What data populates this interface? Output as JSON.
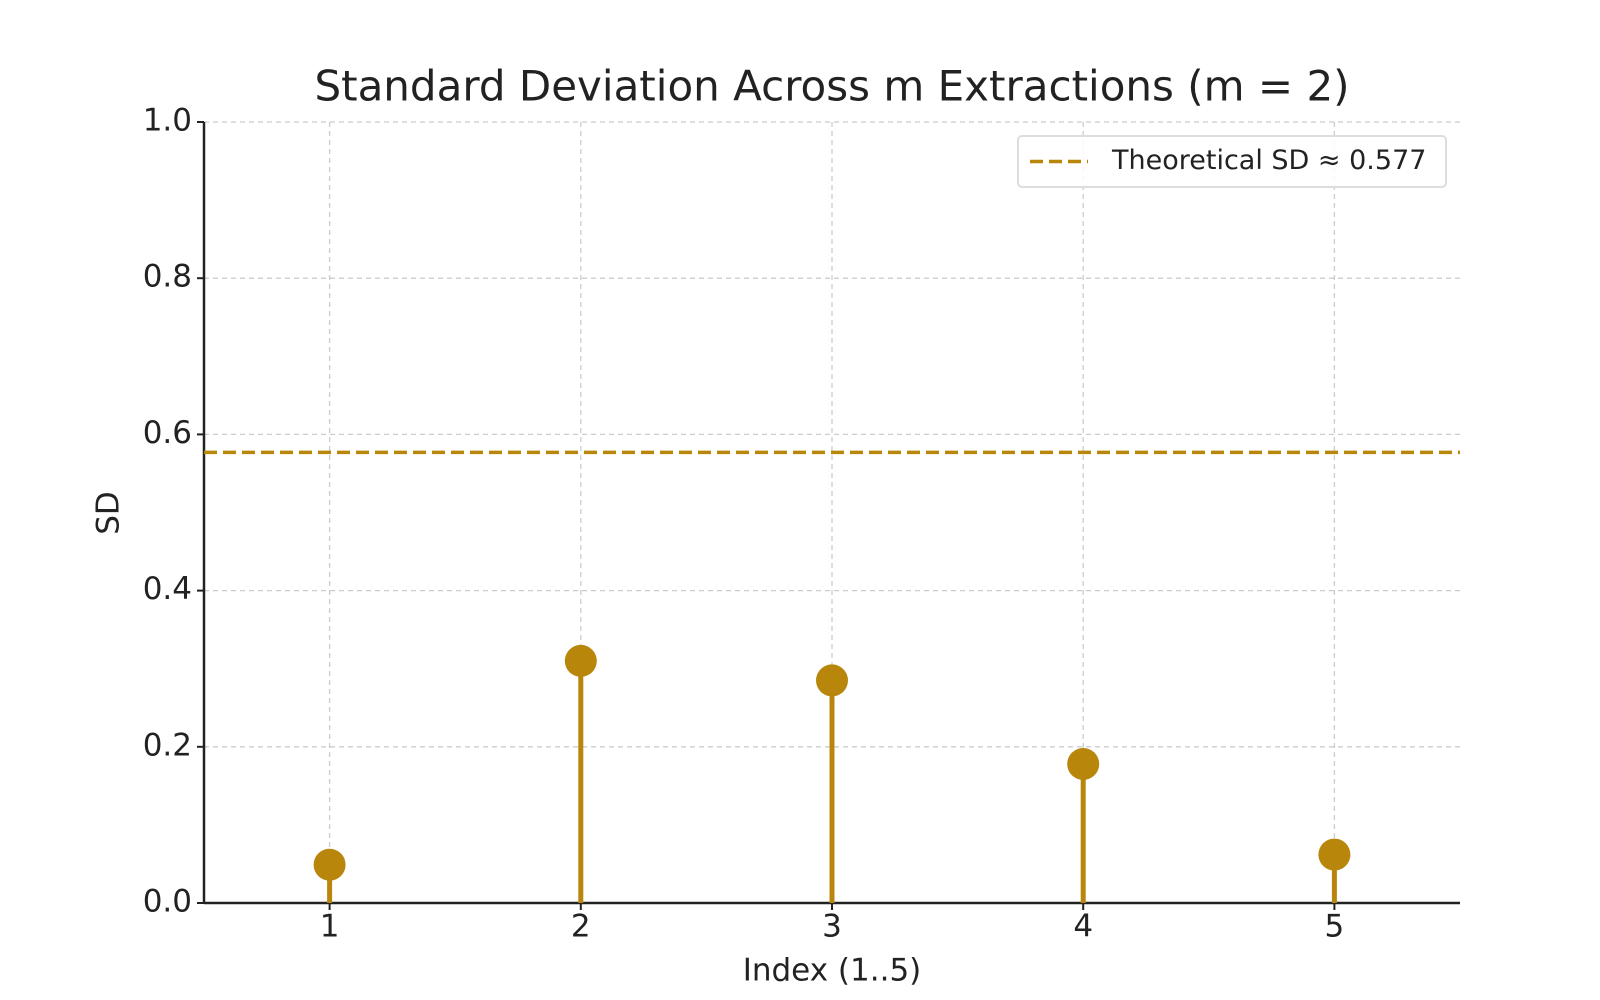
{
  "chart_data": {
    "type": "stem",
    "title": "Standard Deviation Across m Extractions (m = 2)",
    "x_label": "Index (1..5)",
    "y_label": "SD",
    "x": [
      1,
      2,
      3,
      4,
      5
    ],
    "values": [
      0.049,
      0.31,
      0.285,
      0.178,
      0.062
    ],
    "color": "#b8860b",
    "xlim": [
      0.5,
      5.5
    ],
    "xticks": [
      1,
      2,
      3,
      4,
      5
    ],
    "ylim": [
      0,
      1
    ],
    "yticks": [
      {
        "value": 0,
        "label": "0.0"
      },
      0.2,
      0.4,
      0.6,
      0.8,
      {
        "value": 1,
        "label": "1.0"
      }
    ],
    "grid": true,
    "hlines": [
      {
        "value": 0.577,
        "label": "Theoretical SD ≈ 0.577",
        "color": "#b8860b",
        "style": "dashed"
      }
    ],
    "legend": "upper-right"
  }
}
